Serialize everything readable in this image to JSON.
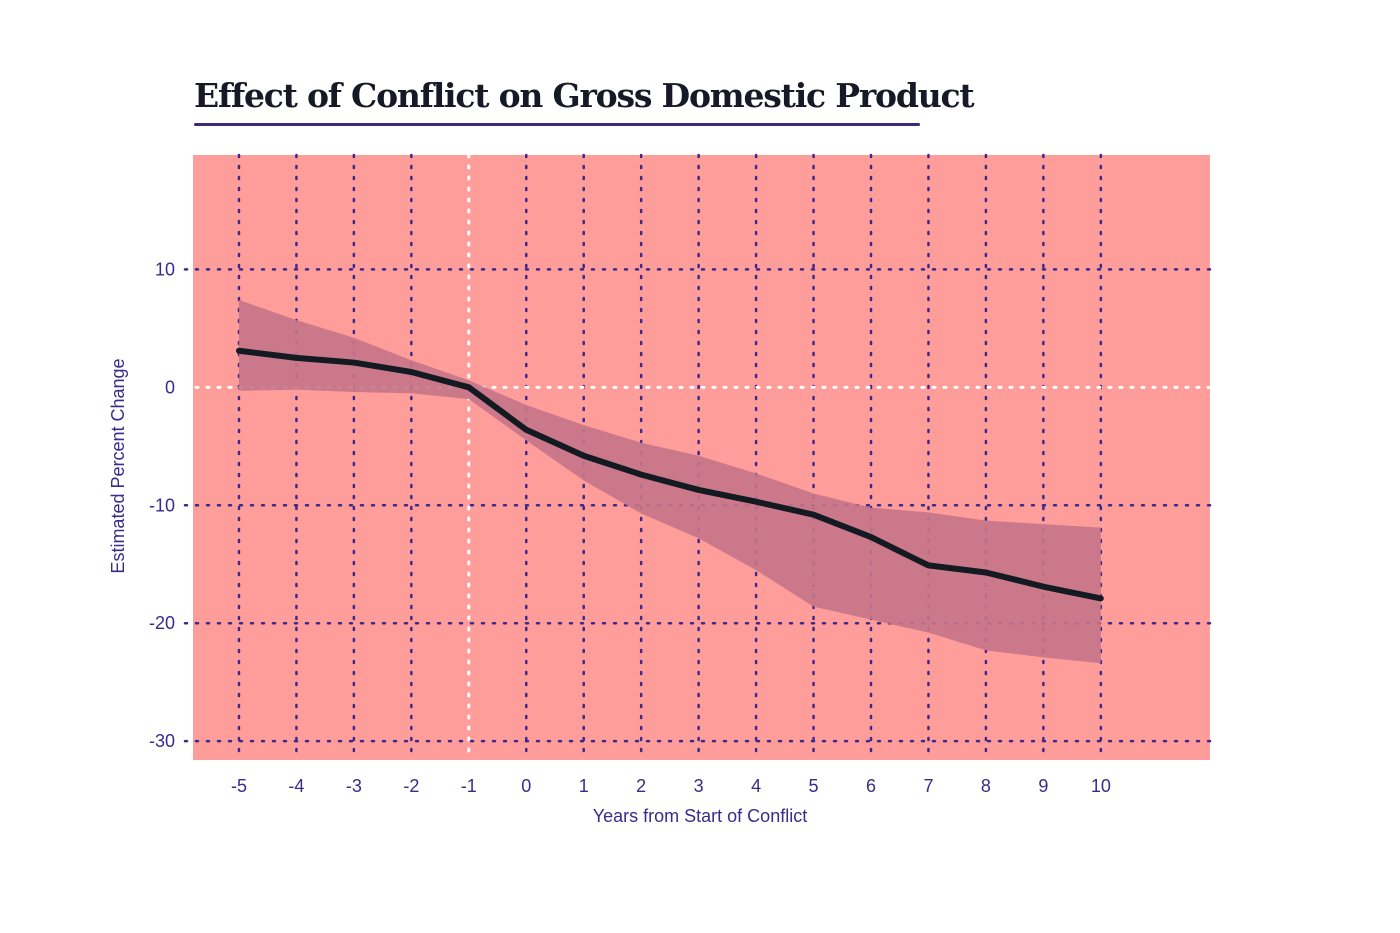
{
  "chart_data": {
    "type": "line",
    "title": "Effect of Conflict on Gross Domestic Product",
    "xlabel": "Years from Start of Conflict",
    "ylabel": "Estimated Percent Change",
    "xlim": [
      -5.8,
      11.9
    ],
    "ylim": [
      -31.6,
      19.7
    ],
    "xticks": [
      -5,
      -4,
      -3,
      -2,
      -1,
      0,
      1,
      2,
      3,
      4,
      5,
      6,
      7,
      8,
      9,
      10
    ],
    "yticks": [
      10,
      0,
      -10,
      -20,
      -30
    ],
    "grid": true,
    "reference_lines": {
      "x": -1,
      "y": 0
    },
    "x": [
      -5,
      -4,
      -3,
      -2,
      -1,
      0,
      1,
      2,
      3,
      4,
      5,
      6,
      7,
      8,
      9,
      10
    ],
    "values": [
      3.1,
      2.5,
      2.1,
      1.3,
      0,
      -3.6,
      -5.8,
      -7.4,
      -8.7,
      -9.7,
      -10.8,
      -12.7,
      -15.1,
      -15.7,
      -16.9,
      -17.9
    ],
    "confidence_upper": [
      7.4,
      5.7,
      4.2,
      2.3,
      0.6,
      -1.5,
      -3.2,
      -4.7,
      -5.8,
      -7.3,
      -9.0,
      -10.2,
      -10.6,
      -11.3,
      -11.6,
      -11.9
    ],
    "confidence_lower": [
      -0.3,
      -0.2,
      -0.4,
      -0.5,
      -1.0,
      -4.5,
      -7.9,
      -10.7,
      -12.8,
      -15.5,
      -18.6,
      -19.7,
      -20.8,
      -22.3,
      -22.9,
      -23.4
    ],
    "colors": {
      "background": "#ff9d9a",
      "band": "#c77489",
      "line": "#141a22",
      "grid": "#3b2a8a",
      "reference": "#ffffff",
      "text": "#3b2a8a"
    }
  }
}
